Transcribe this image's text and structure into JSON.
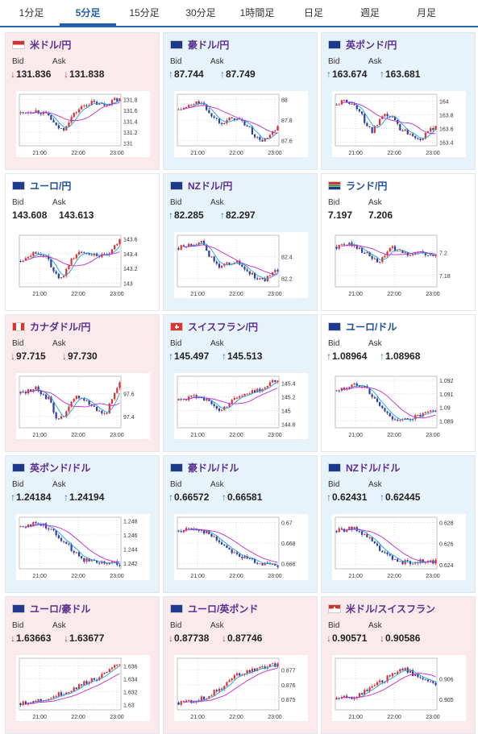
{
  "tabs": [
    "1分足",
    "5分足",
    "15分足",
    "30分足",
    "1時間足",
    "日足",
    "週足",
    "月足"
  ],
  "active_tab": 1,
  "labels": {
    "bid": "Bid",
    "ask": "Ask"
  },
  "cards": [
    {
      "name": "米ドル/円",
      "flag": "us-flag",
      "dir": "down",
      "bg": "down",
      "bid": "131.836",
      "ask": "131.838",
      "chart_data": {
        "type": "line",
        "x_ticks": [
          "21:00",
          "22:00",
          "23:00"
        ],
        "y_ticks": [
          "131.8",
          "131.6",
          "131.4",
          "131.2",
          "131"
        ],
        "ylim": [
          130.95,
          131.9
        ],
        "trend": [
          131.55,
          131.58,
          131.6,
          131.56,
          131.5,
          131.3,
          131.25,
          131.45,
          131.6,
          131.7,
          131.75,
          131.72,
          131.7,
          131.78,
          131.82
        ]
      }
    },
    {
      "name": "豪ドル/円",
      "flag": "au-flag",
      "dir": "up",
      "bg": "up",
      "bid": "87.744",
      "ask": "87.749",
      "chart_data": {
        "type": "line",
        "x_ticks": [
          "21:00",
          "22:00",
          "23:00"
        ],
        "y_ticks": [
          "88",
          "87.8",
          "87.6"
        ],
        "ylim": [
          87.55,
          88.05
        ],
        "trend": [
          87.9,
          87.92,
          87.95,
          87.98,
          87.9,
          87.82,
          87.78,
          87.8,
          87.82,
          87.78,
          87.72,
          87.62,
          87.6,
          87.65,
          87.72
        ]
      }
    },
    {
      "name": "英ポンド/円",
      "flag": "gb-flag",
      "dir": "up",
      "bg": "up",
      "bid": "163.674",
      "ask": "163.681",
      "chart_data": {
        "type": "line",
        "x_ticks": [
          "21:00",
          "22:00",
          "23:00"
        ],
        "y_ticks": [
          "164",
          "163.8",
          "163.6",
          "163.4"
        ],
        "ylim": [
          163.35,
          164.1
        ],
        "trend": [
          163.95,
          164.0,
          163.98,
          163.9,
          163.7,
          163.55,
          163.7,
          163.8,
          163.75,
          163.6,
          163.55,
          163.5,
          163.45,
          163.55,
          163.65
        ]
      }
    },
    {
      "name": "ユーロ/円",
      "flag": "eu-flag",
      "dir": "none",
      "bg": "flat",
      "bid": "143.608",
      "ask": "143.613",
      "chart_data": {
        "type": "line",
        "x_ticks": [
          "21:00",
          "22:00",
          "23:00"
        ],
        "y_ticks": [
          "143.6",
          "143.4",
          "143.2",
          "143"
        ],
        "ylim": [
          142.95,
          143.65
        ],
        "trend": [
          143.3,
          143.38,
          143.42,
          143.4,
          143.3,
          143.1,
          143.05,
          143.3,
          143.4,
          143.42,
          143.4,
          143.38,
          143.35,
          143.45,
          143.58
        ]
      }
    },
    {
      "name": "NZドル/円",
      "flag": "nz-flag",
      "dir": "up",
      "bg": "up",
      "bid": "82.285",
      "ask": "82.297",
      "chart_data": {
        "type": "line",
        "x_ticks": [
          "21:00",
          "22:00",
          "23:00"
        ],
        "y_ticks": [
          "82.4",
          "82.2"
        ],
        "ylim": [
          82.12,
          82.6
        ],
        "trend": [
          82.48,
          82.5,
          82.52,
          82.55,
          82.45,
          82.35,
          82.3,
          82.34,
          82.36,
          82.3,
          82.25,
          82.2,
          82.18,
          82.22,
          82.28
        ]
      }
    },
    {
      "name": "ランド/円",
      "flag": "za-flag",
      "dir": "none",
      "bg": "flat",
      "bid": "7.197",
      "ask": "7.206",
      "chart_data": {
        "type": "line",
        "x_ticks": [
          "21:00",
          "22:00",
          "23:00"
        ],
        "y_ticks": [
          "7.2",
          "7.18"
        ],
        "ylim": [
          7.17,
          7.215
        ],
        "trend": [
          7.205,
          7.206,
          7.208,
          7.204,
          7.2,
          7.195,
          7.19,
          7.2,
          7.204,
          7.2,
          7.198,
          7.2,
          7.2,
          7.196,
          7.198
        ]
      }
    },
    {
      "name": "カナダドル/円",
      "flag": "ca-flag",
      "dir": "down",
      "bg": "down",
      "bid": "97.715",
      "ask": "97.730",
      "chart_data": {
        "type": "line",
        "x_ticks": [
          "21:00",
          "22:00",
          "23:00"
        ],
        "y_ticks": [
          "97.6",
          "97.4"
        ],
        "ylim": [
          97.3,
          97.75
        ],
        "trend": [
          97.6,
          97.62,
          97.65,
          97.6,
          97.55,
          97.4,
          97.38,
          97.5,
          97.58,
          97.55,
          97.5,
          97.45,
          97.42,
          97.55,
          97.68
        ]
      }
    },
    {
      "name": "スイスフラン/円",
      "flag": "ch-flag",
      "dir": "up",
      "bg": "up",
      "bid": "145.497",
      "ask": "145.513",
      "chart_data": {
        "type": "line",
        "x_ticks": [
          "21:00",
          "22:00",
          "23:00"
        ],
        "y_ticks": [
          "145.4",
          "145.2",
          "145",
          "144.8"
        ],
        "ylim": [
          144.75,
          145.5
        ],
        "trend": [
          145.15,
          145.18,
          145.2,
          145.22,
          145.15,
          145.05,
          145.0,
          145.1,
          145.2,
          145.22,
          145.25,
          145.3,
          145.32,
          145.4,
          145.45
        ]
      }
    },
    {
      "name": "ユーロ/ドル",
      "flag": "euus-flag",
      "dir": "up",
      "bg": "flat",
      "bid": "1.08964",
      "ask": "1.08968",
      "chart_data": {
        "type": "line",
        "x_ticks": [
          "21:00",
          "22:00",
          "23:00"
        ],
        "y_ticks": [
          "1.092",
          "1.091",
          "1.09",
          "1.089"
        ],
        "ylim": [
          1.0885,
          1.0923
        ],
        "trend": [
          1.0912,
          1.0914,
          1.0916,
          1.0917,
          1.0916,
          1.0908,
          1.0902,
          1.0896,
          1.0892,
          1.089,
          1.0891,
          1.0893,
          1.0894,
          1.0896,
          1.0897
        ]
      }
    },
    {
      "name": "英ポンド/ドル",
      "flag": "gbus-flag",
      "dir": "up",
      "bg": "up",
      "bid": "1.24184",
      "ask": "1.24194",
      "chart_data": {
        "type": "line",
        "x_ticks": [
          "21:00",
          "22:00",
          "23:00"
        ],
        "y_ticks": [
          "1.248",
          "1.246",
          "1.244",
          "1.242"
        ],
        "ylim": [
          1.2412,
          1.2485
        ],
        "trend": [
          1.2472,
          1.2474,
          1.2476,
          1.2475,
          1.247,
          1.2462,
          1.2452,
          1.2442,
          1.2432,
          1.2425,
          1.2424,
          1.2423,
          1.2421,
          1.242,
          1.2419
        ]
      }
    },
    {
      "name": "豪ドル/ドル",
      "flag": "auus-flag",
      "dir": "up",
      "bg": "up",
      "bid": "0.66572",
      "ask": "0.66581",
      "chart_data": {
        "type": "line",
        "x_ticks": [
          "21:00",
          "22:00",
          "23:00"
        ],
        "y_ticks": [
          "0.67",
          "0.668",
          "0.666"
        ],
        "ylim": [
          0.6655,
          0.6705
        ],
        "trend": [
          0.6692,
          0.6693,
          0.6694,
          0.6693,
          0.669,
          0.6685,
          0.668,
          0.6675,
          0.667,
          0.6666,
          0.6664,
          0.6662,
          0.666,
          0.6658,
          0.6657
        ]
      }
    },
    {
      "name": "NZドル/ドル",
      "flag": "nzus-flag",
      "dir": "up",
      "bg": "up",
      "bid": "0.62431",
      "ask": "0.62445",
      "chart_data": {
        "type": "line",
        "x_ticks": [
          "21:00",
          "22:00",
          "23:00"
        ],
        "y_ticks": [
          "0.628",
          "0.626",
          "0.624"
        ],
        "ylim": [
          0.6236,
          0.6285
        ],
        "trend": [
          0.6272,
          0.6273,
          0.6274,
          0.6273,
          0.6268,
          0.6262,
          0.6255,
          0.6249,
          0.6245,
          0.6243,
          0.6242,
          0.6243,
          0.6243,
          0.6242,
          0.6243
        ]
      }
    },
    {
      "name": "ユーロ/豪ドル",
      "flag": "euau-flag",
      "dir": "down",
      "bg": "down",
      "bid": "1.63663",
      "ask": "1.63677",
      "chart_data": {
        "type": "line",
        "x_ticks": [
          "21:00",
          "22:00",
          "23:00"
        ],
        "y_ticks": [
          "1.636",
          "1.634",
          "1.632",
          "1.63"
        ],
        "ylim": [
          1.6292,
          1.6372
        ],
        "trend": [
          1.6302,
          1.6304,
          1.6306,
          1.6308,
          1.631,
          1.6314,
          1.6318,
          1.6322,
          1.6328,
          1.6334,
          1.6338,
          1.6342,
          1.6348,
          1.6356,
          1.6364
        ]
      }
    },
    {
      "name": "ユーロ/英ポンド",
      "flag": "eugb-flag",
      "dir": "down",
      "bg": "down",
      "bid": "0.87738",
      "ask": "0.87746",
      "chart_data": {
        "type": "line",
        "x_ticks": [
          "21:00",
          "22:00",
          "23:00"
        ],
        "y_ticks": [
          "0.877",
          "0.876",
          "0.875"
        ],
        "ylim": [
          0.8743,
          0.8778
        ],
        "trend": [
          0.8748,
          0.8749,
          0.8749,
          0.875,
          0.8752,
          0.8755,
          0.8758,
          0.8762,
          0.8766,
          0.8768,
          0.877,
          0.8771,
          0.8772,
          0.8773,
          0.8774
        ]
      }
    },
    {
      "name": "米ドル/スイスフラン",
      "flag": "usch-flag",
      "dir": "down",
      "bg": "down",
      "bid": "0.90571",
      "ask": "0.90586",
      "chart_data": {
        "type": "line",
        "x_ticks": [
          "21:00",
          "22:00",
          "23:00"
        ],
        "y_ticks": [
          "0.906",
          "0.905"
        ],
        "ylim": [
          0.9045,
          0.907
        ],
        "trend": [
          0.905,
          0.9051,
          0.9051,
          0.9052,
          0.9054,
          0.9056,
          0.9058,
          0.906,
          0.9063,
          0.9065,
          0.9064,
          0.9062,
          0.906,
          0.9058,
          0.9058
        ]
      }
    }
  ]
}
